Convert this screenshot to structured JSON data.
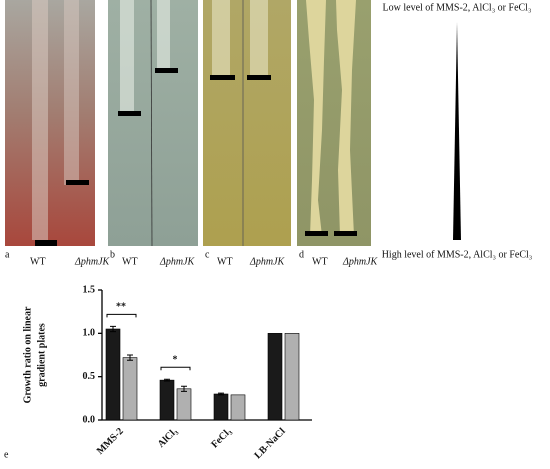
{
  "panels": [
    {
      "letter": "a",
      "wt": "WT",
      "mutant": "ΔphmJK"
    },
    {
      "letter": "b",
      "wt": "WT",
      "mutant": "ΔphmJK"
    },
    {
      "letter": "c",
      "wt": "WT",
      "mutant": "ΔphmJK"
    },
    {
      "letter": "d",
      "wt": "WT",
      "mutant": "ΔphmJK"
    }
  ],
  "gradient": {
    "low": "Low level of MMS-2, AlCl₃ or FeCl₃",
    "high": "High level of MMS-2, AlCl₃ or FeCl₃"
  },
  "chart_data": {
    "type": "bar",
    "panel_label": "e",
    "ylabel": [
      "Growth ratio on linear",
      "gradient plates"
    ],
    "categories": [
      "MMS-2",
      "AlCl₃",
      "FeCl₃",
      "LB-NaCl"
    ],
    "series": [
      {
        "color": "#1a1a1a",
        "values": [
          1.05,
          0.46,
          0.3,
          1.0
        ],
        "errors": [
          0.03,
          0.01,
          0.01,
          0
        ]
      },
      {
        "color": "#b0b0b0",
        "values": [
          0.72,
          0.36,
          0.29,
          1.0
        ],
        "errors": [
          0.03,
          0.03,
          0,
          0
        ]
      }
    ],
    "annotations": [
      "**",
      "*"
    ],
    "ylim": [
      0,
      1.5
    ],
    "yticks": [
      {
        "value": 0,
        "label": "0.0"
      },
      0.5,
      {
        "value": 1,
        "label": "1.0"
      },
      1.5
    ]
  }
}
